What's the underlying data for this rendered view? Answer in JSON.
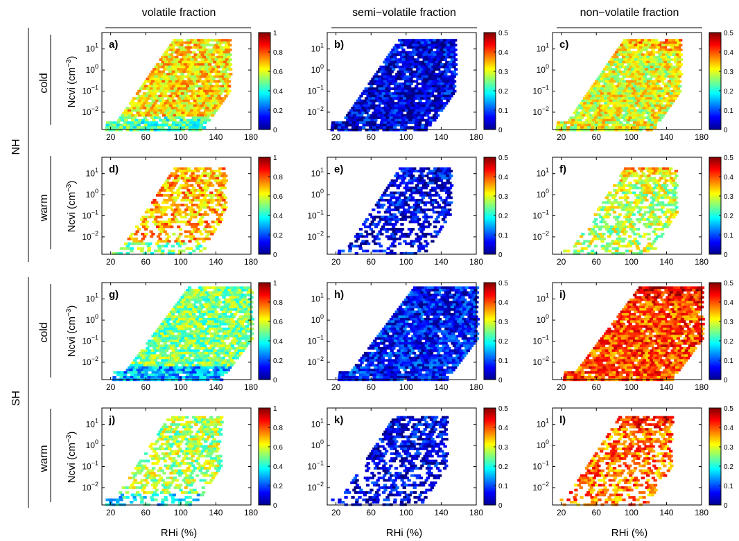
{
  "chart_data": {
    "type": "heatmap",
    "column_titles": [
      "volatile fraction",
      "semi−volatile fraction",
      "non−volatile fraction"
    ],
    "hemispheres": [
      "NH",
      "SH"
    ],
    "conditions": [
      "cold",
      "warm"
    ],
    "xlabel": "RHi (%)",
    "ylabel_text": "Ncvi (cm",
    "ylabel_exp": "−3",
    "ylabel_close": ")",
    "x_range": [
      10,
      180
    ],
    "x_ticks": [
      20,
      60,
      100,
      140,
      180
    ],
    "y_scale": "log",
    "y_range": [
      0.0015,
      60
    ],
    "y_ticks": [
      {
        "value": 0.01,
        "base": "10",
        "exp": "−2"
      },
      {
        "value": 0.1,
        "base": "10",
        "exp": "−1"
      },
      {
        "value": 1,
        "base": "10",
        "exp": "0"
      },
      {
        "value": 10,
        "base": "10",
        "exp": "1"
      }
    ],
    "colorscale": "jet",
    "colorbar_ranges": {
      "volatile": {
        "min": 0,
        "max": 1,
        "ticks": [
          "0",
          "0.2",
          "0.4",
          "0.6",
          "0.8",
          "1"
        ]
      },
      "semi": {
        "min": 0,
        "max": 0.5,
        "ticks": [
          "0",
          "0.1",
          "0.2",
          "0.3",
          "0.4",
          "0.5"
        ]
      },
      "non": {
        "min": 0,
        "max": 0.5,
        "ticks": [
          "0",
          "0.1",
          "0.2",
          "0.3",
          "0.4",
          "0.5"
        ]
      }
    },
    "panels": [
      {
        "id": "a",
        "label": "a)",
        "hemisphere": "NH",
        "condition": "cold",
        "fraction": "volatile",
        "region": {
          "x": [
            12,
            155
          ],
          "y": [
            0.0015,
            30
          ]
        },
        "typical_value": 0.65,
        "features": "mostly orange/yellow; red near RHi 50–60 at low Ncvi; cyan/green along the lower edge"
      },
      {
        "id": "b",
        "label": "b)",
        "hemisphere": "NH",
        "condition": "cold",
        "fraction": "semi",
        "region": {
          "x": [
            12,
            155
          ],
          "y": [
            0.0015,
            30
          ]
        },
        "typical_value": 0.05,
        "features": "almost uniformly dark blue"
      },
      {
        "id": "c",
        "label": "c)",
        "hemisphere": "NH",
        "condition": "cold",
        "fraction": "non",
        "region": {
          "x": [
            12,
            155
          ],
          "y": [
            0.0015,
            30
          ]
        },
        "typical_value": 0.3,
        "features": "cyan/green at center; red/orange at high Ncvi (top-right); red patches at low RHi"
      },
      {
        "id": "d",
        "label": "d)",
        "hemisphere": "NH",
        "condition": "warm",
        "fraction": "volatile",
        "region": {
          "x": [
            20,
            150
          ],
          "y": [
            0.0015,
            20
          ]
        },
        "typical_value": 0.7,
        "features": "orange/yellow, sparse scattered bins at low Ncvi"
      },
      {
        "id": "e",
        "label": "e)",
        "hemisphere": "NH",
        "condition": "warm",
        "fraction": "semi",
        "region": {
          "x": [
            20,
            150
          ],
          "y": [
            0.0015,
            20
          ]
        },
        "typical_value": 0.05,
        "features": "dark blue, sparse"
      },
      {
        "id": "f",
        "label": "f)",
        "hemisphere": "NH",
        "condition": "warm",
        "fraction": "non",
        "region": {
          "x": [
            20,
            150
          ],
          "y": [
            0.0015,
            20
          ]
        },
        "typical_value": 0.28,
        "features": "cyan/yellow; dark red at the top; scattered colors at low Ncvi"
      },
      {
        "id": "g",
        "label": "g)",
        "hemisphere": "SH",
        "condition": "cold",
        "fraction": "volatile",
        "region": {
          "x": [
            20,
            180
          ],
          "y": [
            0.0015,
            40
          ]
        },
        "typical_value": 0.5,
        "features": "yellow/green throughout; cyan patches near the bottom"
      },
      {
        "id": "h",
        "label": "h)",
        "hemisphere": "SH",
        "condition": "cold",
        "fraction": "semi",
        "region": {
          "x": [
            20,
            180
          ],
          "y": [
            0.0015,
            40
          ]
        },
        "typical_value": 0.07,
        "features": "blue; slightly lighter blue at the bottom edge"
      },
      {
        "id": "i",
        "label": "i)",
        "hemisphere": "SH",
        "condition": "cold",
        "fraction": "non",
        "region": {
          "x": [
            20,
            180
          ],
          "y": [
            0.0015,
            40
          ]
        },
        "typical_value": 0.4,
        "features": "orange/red broadly; yellow at center; dark red at low Ncvi"
      },
      {
        "id": "j",
        "label": "j)",
        "hemisphere": "SH",
        "condition": "warm",
        "fraction": "volatile",
        "region": {
          "x": [
            12,
            145
          ],
          "y": [
            0.0015,
            25
          ]
        },
        "typical_value": 0.55,
        "features": "yellow/green, sparse"
      },
      {
        "id": "k",
        "label": "k)",
        "hemisphere": "SH",
        "condition": "warm",
        "fraction": "semi",
        "region": {
          "x": [
            12,
            145
          ],
          "y": [
            0.0015,
            25
          ]
        },
        "typical_value": 0.05,
        "features": "dark blue with a few cyan bins"
      },
      {
        "id": "l",
        "label": "l)",
        "hemisphere": "SH",
        "condition": "warm",
        "fraction": "non",
        "region": {
          "x": [
            12,
            145
          ],
          "y": [
            0.0015,
            25
          ]
        },
        "typical_value": 0.38,
        "features": "orange/yellow with dark red bins at the top"
      }
    ]
  }
}
